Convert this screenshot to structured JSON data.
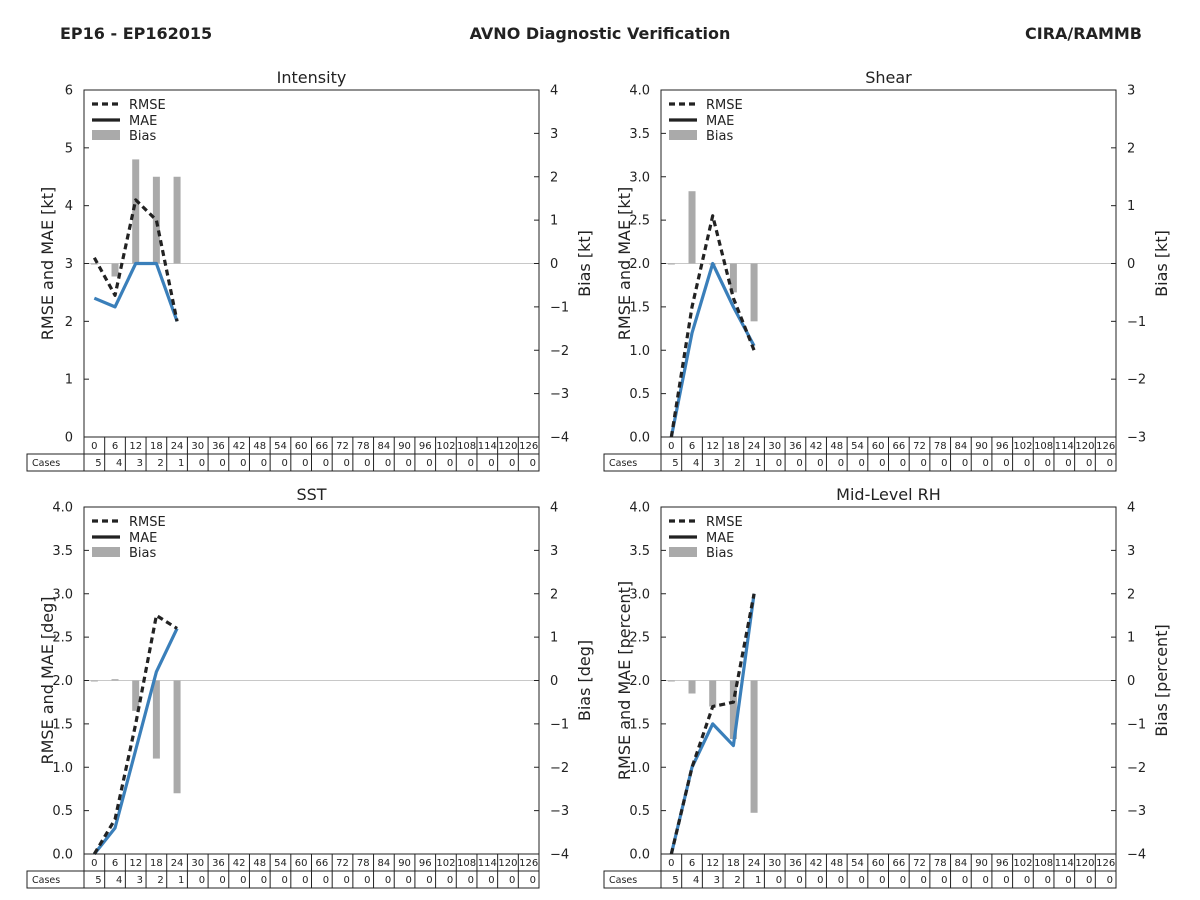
{
  "header": {
    "left": "EP16 - EP162015",
    "center": "AVNO Diagnostic Verification",
    "right": "CIRA/RAMMB"
  },
  "colors": {
    "rmse": "#222222",
    "mae": "#3a7fba",
    "bias": "#aaaaaa"
  },
  "legend": [
    "RMSE",
    "MAE",
    "Bias"
  ],
  "cases_label": "Cases",
  "chart_data": [
    {
      "type": "line",
      "title": "Intensity",
      "ylabel": "RMSE and MAE [kt]",
      "y2label": "Bias [kt]",
      "ylim": [
        0,
        6
      ],
      "yticks": [
        0,
        1,
        2,
        3,
        4,
        5,
        6
      ],
      "ytick_labels": [
        "0",
        "1",
        "2",
        "3",
        "4",
        "5",
        "6"
      ],
      "y2lim": [
        -4,
        4
      ],
      "y2ticks": [
        -4,
        -3,
        -2,
        -1,
        0,
        1,
        2,
        3,
        4
      ],
      "y2tick_labels": [
        "−4",
        "−3",
        "−2",
        "−1",
        "0",
        "1",
        "2",
        "3",
        "4"
      ],
      "x": [
        0,
        6,
        12,
        18,
        24,
        30,
        36,
        42,
        48,
        54,
        60,
        66,
        72,
        78,
        84,
        90,
        96,
        102,
        108,
        114,
        120,
        126
      ],
      "cases": [
        5,
        4,
        3,
        2,
        1,
        0,
        0,
        0,
        0,
        0,
        0,
        0,
        0,
        0,
        0,
        0,
        0,
        0,
        0,
        0,
        0,
        0
      ],
      "rmse": [
        3.1,
        2.45,
        4.1,
        3.75,
        2.0
      ],
      "mae": [
        2.4,
        2.25,
        3.0,
        3.0,
        2.0
      ],
      "bias": [
        0.0,
        -0.3,
        2.4,
        2.0,
        2.0
      ]
    },
    {
      "type": "line",
      "title": "Shear",
      "ylabel": "RMSE and MAE [kt]",
      "y2label": "Bias [kt]",
      "ylim": [
        0,
        4
      ],
      "yticks": [
        0,
        0.5,
        1,
        1.5,
        2,
        2.5,
        3,
        3.5,
        4
      ],
      "ytick_labels": [
        "0.0",
        "0.5",
        "1.0",
        "1.5",
        "2.0",
        "2.5",
        "3.0",
        "3.5",
        "4.0"
      ],
      "y2lim": [
        -3,
        3
      ],
      "y2ticks": [
        -3,
        -2,
        -1,
        0,
        1,
        2,
        3
      ],
      "y2tick_labels": [
        "−3",
        "−2",
        "−1",
        "0",
        "1",
        "2",
        "3"
      ],
      "x": [
        0,
        6,
        12,
        18,
        24,
        30,
        36,
        42,
        48,
        54,
        60,
        66,
        72,
        78,
        84,
        90,
        96,
        102,
        108,
        114,
        120,
        126
      ],
      "cases": [
        5,
        4,
        3,
        2,
        1,
        0,
        0,
        0,
        0,
        0,
        0,
        0,
        0,
        0,
        0,
        0,
        0,
        0,
        0,
        0,
        0,
        0
      ],
      "rmse": [
        0.0,
        1.5,
        2.55,
        1.6,
        1.0
      ],
      "mae": [
        0.0,
        1.2,
        2.0,
        1.5,
        1.05
      ],
      "bias": [
        0.0,
        1.25,
        0.0,
        -0.5,
        -1.0
      ]
    },
    {
      "type": "line",
      "title": "SST",
      "ylabel": "RMSE and MAE [deg]",
      "y2label": "Bias [deg]",
      "ylim": [
        0,
        4
      ],
      "yticks": [
        0,
        0.5,
        1,
        1.5,
        2,
        2.5,
        3,
        3.5,
        4
      ],
      "ytick_labels": [
        "0.0",
        "0.5",
        "1.0",
        "1.5",
        "2.0",
        "2.5",
        "3.0",
        "3.5",
        "4.0"
      ],
      "y2lim": [
        -4,
        4
      ],
      "y2ticks": [
        -4,
        -3,
        -2,
        -1,
        0,
        1,
        2,
        3,
        4
      ],
      "y2tick_labels": [
        "−4",
        "−3",
        "−2",
        "−1",
        "0",
        "1",
        "2",
        "3",
        "4"
      ],
      "x": [
        0,
        6,
        12,
        18,
        24,
        30,
        36,
        42,
        48,
        54,
        60,
        66,
        72,
        78,
        84,
        90,
        96,
        102,
        108,
        114,
        120,
        126
      ],
      "cases": [
        5,
        4,
        3,
        2,
        1,
        0,
        0,
        0,
        0,
        0,
        0,
        0,
        0,
        0,
        0,
        0,
        0,
        0,
        0,
        0,
        0,
        0
      ],
      "rmse": [
        0.0,
        0.4,
        1.5,
        2.75,
        2.6
      ],
      "mae": [
        0.0,
        0.3,
        1.2,
        2.1,
        2.6
      ],
      "bias": [
        0.0,
        0.03,
        -0.7,
        -1.8,
        -2.6
      ]
    },
    {
      "type": "line",
      "title": "Mid-Level RH",
      "ylabel": "RMSE and MAE [percent]",
      "y2label": "Bias [percent]",
      "ylim": [
        0,
        4
      ],
      "yticks": [
        0,
        0.5,
        1,
        1.5,
        2,
        2.5,
        3,
        3.5,
        4
      ],
      "ytick_labels": [
        "0.0",
        "0.5",
        "1.0",
        "1.5",
        "2.0",
        "2.5",
        "3.0",
        "3.5",
        "4.0"
      ],
      "y2lim": [
        -4,
        4
      ],
      "y2ticks": [
        -4,
        -3,
        -2,
        -1,
        0,
        1,
        2,
        3,
        4
      ],
      "y2tick_labels": [
        "−4",
        "−3",
        "−2",
        "−1",
        "0",
        "1",
        "2",
        "3",
        "4"
      ],
      "x": [
        0,
        6,
        12,
        18,
        24,
        30,
        36,
        42,
        48,
        54,
        60,
        66,
        72,
        78,
        84,
        90,
        96,
        102,
        108,
        114,
        120,
        126
      ],
      "cases": [
        5,
        4,
        3,
        2,
        1,
        0,
        0,
        0,
        0,
        0,
        0,
        0,
        0,
        0,
        0,
        0,
        0,
        0,
        0,
        0,
        0,
        0
      ],
      "rmse": [
        0.0,
        1.0,
        1.7,
        1.75,
        3.0
      ],
      "mae": [
        0.0,
        1.0,
        1.5,
        1.25,
        3.0
      ],
      "bias": [
        0.0,
        -0.3,
        -0.6,
        -1.35,
        -3.05
      ]
    }
  ]
}
